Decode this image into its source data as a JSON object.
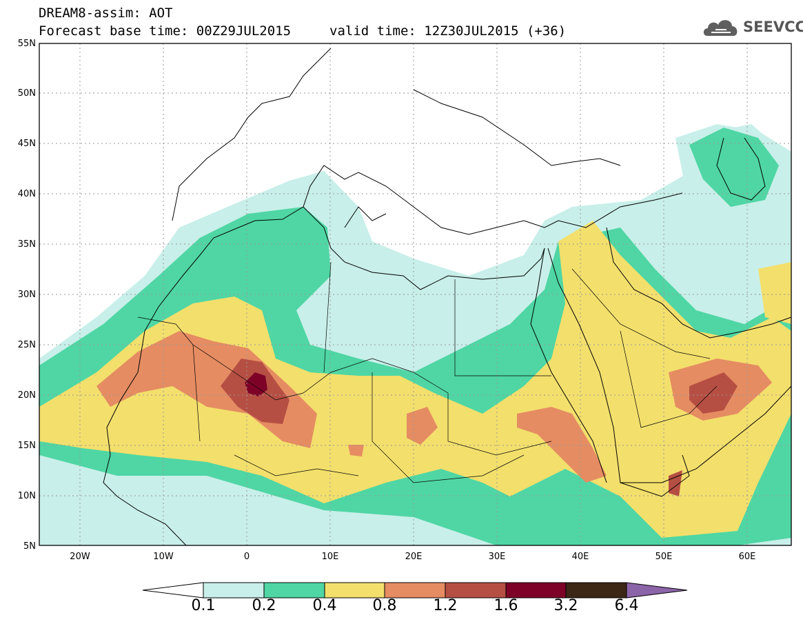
{
  "title": {
    "line1": "DREAM8-assim: AOT",
    "line2a": "Forecast base time: 00Z29JUL2015",
    "line2b": "valid time: 12Z30JUL2015 (+36)"
  },
  "logo": {
    "text": "SEEVCCC",
    "icon": "cloud-icon"
  },
  "map": {
    "lon_range": [
      -25,
      65
    ],
    "lat_range": [
      5,
      55
    ],
    "lat_ticks": [
      "5N",
      "10N",
      "15N",
      "20N",
      "25N",
      "30N",
      "35N",
      "40N",
      "45N",
      "50N",
      "55N"
    ],
    "lon_ticks": [
      "20W",
      "10W",
      "0",
      "10E",
      "20E",
      "30E",
      "40E",
      "50E",
      "60E"
    ],
    "field": "Aerosol Optical Thickness (dust)"
  },
  "legend": {
    "levels": [
      "0.1",
      "0.2",
      "0.4",
      "0.8",
      "1.2",
      "1.6",
      "3.2",
      "6.4"
    ],
    "colors": {
      "c1": "#c8efe9",
      "c2": "#4fd6a4",
      "c3": "#f3df6c",
      "c4": "#e58c62",
      "c5": "#b64f43",
      "c6": "#7e0228",
      "c7": "#3c2616",
      "c8": "#8c64a8"
    }
  }
}
